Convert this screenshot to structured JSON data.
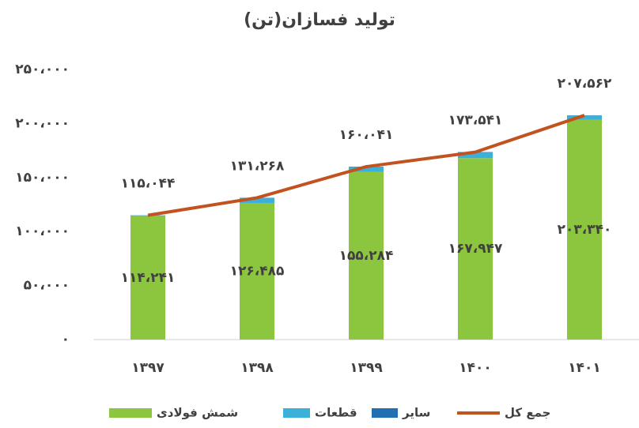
{
  "chart_data": {
    "type": "bar",
    "stacked": true,
    "title": "تولید فسازان(تن)",
    "categories": [
      "۱۳۹۷",
      "۱۳۹۸",
      "۱۳۹۹",
      "۱۴۰۰",
      "۱۴۰۱"
    ],
    "series": [
      {
        "name": "شمش فولادی",
        "color": "#8cc63e",
        "values": [
          114241,
          126485,
          155284,
          167947,
          203340
        ],
        "value_labels": [
          "۱۱۴،۲۴۱",
          "۱۲۶،۴۸۵",
          "۱۵۵،۲۸۴",
          "۱۶۷،۹۴۷",
          "۲۰۳،۳۴۰"
        ]
      },
      {
        "name": "قطعات",
        "color": "#3bb0d9",
        "values": [
          700,
          4500,
          4500,
          5300,
          4000
        ]
      },
      {
        "name": "سایر",
        "color": "#1f6fb2",
        "values": [
          103,
          283,
          257,
          294,
          222
        ]
      },
      {
        "name": "جمع کل",
        "color": "#c2521f",
        "type": "line",
        "values": [
          115044,
          131268,
          160041,
          173541,
          207562
        ],
        "value_labels": [
          "۱۱۵،۰۴۴",
          "۱۳۱،۲۶۸",
          "۱۶۰،۰۴۱",
          "۱۷۳،۵۴۱",
          "۲۰۷،۵۶۲"
        ]
      }
    ],
    "ylim": [
      0,
      250000
    ],
    "yticks": [
      {
        "value": 0,
        "label": "۰"
      },
      {
        "value": 50000,
        "label": "۵۰،۰۰۰"
      },
      {
        "value": 100000,
        "label": "۱۰۰،۰۰۰"
      },
      {
        "value": 150000,
        "label": "۱۵۰،۰۰۰"
      },
      {
        "value": 200000,
        "label": "۲۰۰،۰۰۰"
      },
      {
        "value": 250000,
        "label": "۲۵۰،۰۰۰"
      }
    ],
    "grid": false
  }
}
